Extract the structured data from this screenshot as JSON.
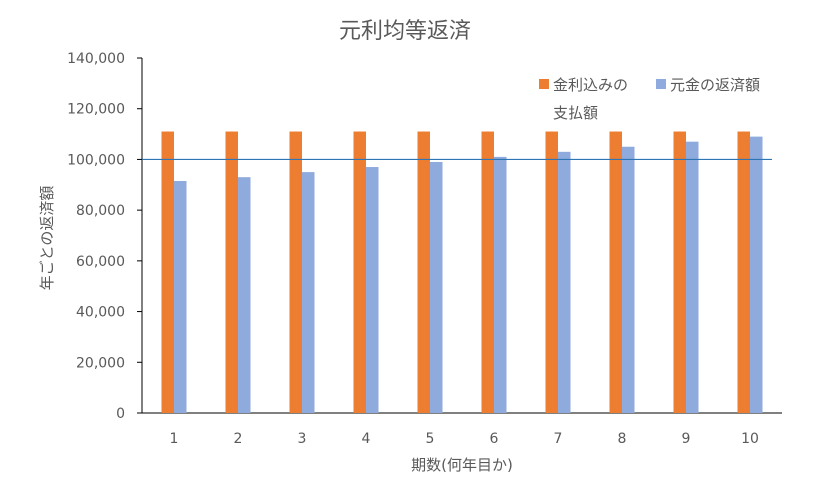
{
  "chart_data": {
    "type": "bar",
    "title": "元利均等返済",
    "xlabel": "期数(何年目か)",
    "ylabel": "年ごとの返済額",
    "categories": [
      "1",
      "2",
      "3",
      "4",
      "5",
      "6",
      "7",
      "8",
      "9",
      "10"
    ],
    "series": [
      {
        "name": "金利込みの支払額",
        "legend_lines": [
          "金利込みの",
          "支払額"
        ],
        "color": "#ED7D31",
        "values": [
          111000,
          111000,
          111000,
          111000,
          111000,
          111000,
          111000,
          111000,
          111000,
          111000
        ]
      },
      {
        "name": "元金の返済額",
        "legend_lines": [
          "元金の返済額"
        ],
        "color": "#8FAADC",
        "values": [
          91500,
          93000,
          95000,
          97000,
          99000,
          101000,
          103000,
          105000,
          107000,
          109000
        ]
      }
    ],
    "ylim": [
      0,
      140000
    ],
    "yticks": [
      "0",
      "20,000",
      "40,000",
      "60,000",
      "80,000",
      "100,000",
      "120,000",
      "140,000"
    ],
    "reference_line": {
      "value": 100000,
      "color": "#2E75B6"
    },
    "grid": false,
    "legend_position": "top-right"
  }
}
